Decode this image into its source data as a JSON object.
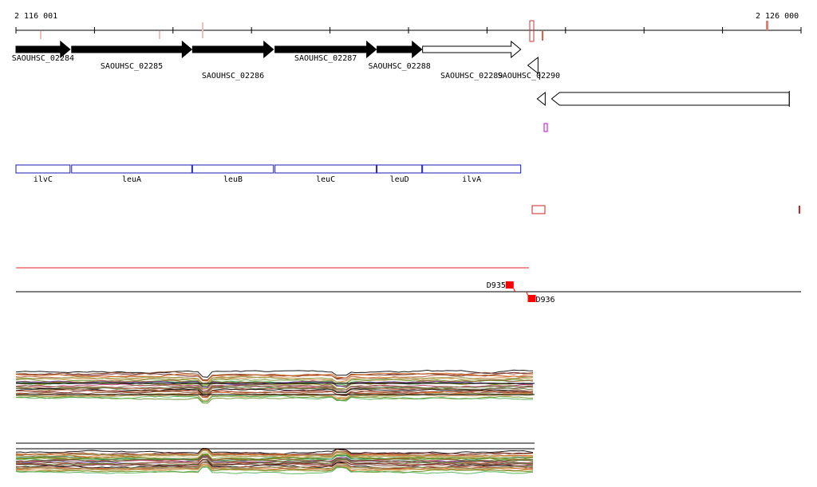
{
  "coords": {
    "start_label": "2 116 001",
    "end_label": "2 126 000",
    "range": [
      2116001,
      2126000
    ]
  },
  "colors": {
    "forward_gene": "#000000",
    "reverse_gene": "#ffffff",
    "operon_box": "#1a1ab0",
    "red_line": "#e02020",
    "marker_pink": "#f0b8a8",
    "marker_red": "#cc3333",
    "magenta": "#cc00cc",
    "probe": "#ff0000"
  },
  "genes": [
    {
      "id": "SAOUHSC_02284",
      "strand": "+",
      "start": 2116001,
      "end": 2116690,
      "filled": true
    },
    {
      "id": "SAOUHSC_02285",
      "strand": "+",
      "start": 2116710,
      "end": 2118240,
      "filled": true
    },
    {
      "id": "SAOUHSC_02286",
      "strand": "+",
      "start": 2118250,
      "end": 2119280,
      "filled": true
    },
    {
      "id": "SAOUHSC_02287",
      "strand": "+",
      "start": 2119300,
      "end": 2120590,
      "filled": true
    },
    {
      "id": "SAOUHSC_02288",
      "strand": "+",
      "start": 2120600,
      "end": 2121170,
      "filled": true
    },
    {
      "id": "SAOUHSC_02289",
      "strand": "+",
      "start": 2121180,
      "end": 2122430,
      "filled": false
    },
    {
      "id": "SAOUHSC_02290",
      "strand": "-",
      "start": 2122520,
      "end": 2122650,
      "filled": false
    },
    {
      "id": "",
      "strand": "-",
      "start": 2122640,
      "end": 2125850,
      "filled": false
    }
  ],
  "operon_genes": [
    {
      "name": "ilvC",
      "start": 2116001,
      "end": 2116690
    },
    {
      "name": "leuA",
      "start": 2116710,
      "end": 2118240
    },
    {
      "name": "leuB",
      "start": 2118250,
      "end": 2119280
    },
    {
      "name": "leuC",
      "start": 2119300,
      "end": 2120590
    },
    {
      "name": "leuD",
      "start": 2120600,
      "end": 2121170
    },
    {
      "name": "ilvA",
      "start": 2121180,
      "end": 2122430
    }
  ],
  "probes": [
    {
      "name": "D935",
      "strand": "+",
      "position": 2122360
    },
    {
      "name": "D936",
      "strand": "-",
      "position": 2122540
    }
  ],
  "expression_tracks": [
    {
      "name": "forward_expression",
      "n_series": 30
    },
    {
      "name": "reverse_expression",
      "n_series": 30
    }
  ]
}
